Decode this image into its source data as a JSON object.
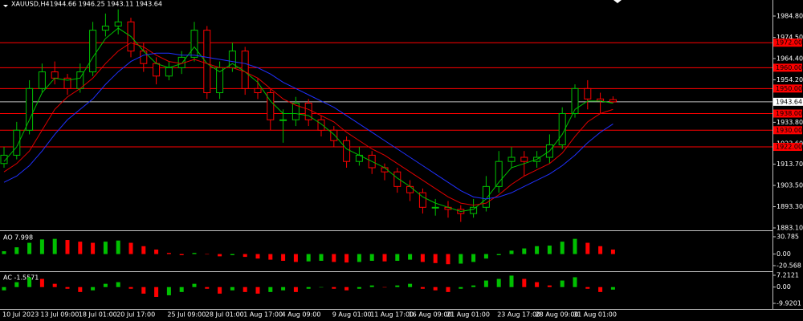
{
  "chart_data": [
    {
      "type": "candlestick",
      "title": "XAUUSD,H4",
      "quote": "1944.66 1946.25 1943.11 1943.64",
      "categories": [
        "10 Jul 2023",
        null,
        null,
        "13 Jul 09:00",
        null,
        null,
        "18 Jul 01:00",
        null,
        null,
        "20 Jul 17:00",
        null,
        null,
        null,
        "25 Jul 09:00",
        null,
        null,
        "28 Jul 01:00",
        null,
        null,
        "1 Aug 17:00",
        null,
        null,
        "4 Aug 09:00",
        null,
        null,
        null,
        "9 Aug 01:00",
        null,
        null,
        "11 Aug 17:00",
        null,
        null,
        "16 Aug 09:00",
        null,
        null,
        "21 Aug 01:00",
        null,
        null,
        null,
        "23 Aug 17:00",
        null,
        null,
        "28 Aug 09:00",
        null,
        null,
        "31 Aug 01:00",
        null,
        null,
        null
      ],
      "open": [
        1914,
        1918,
        1930,
        1950,
        1958,
        1955,
        1950,
        1958,
        1978,
        1980,
        1982,
        1968,
        1962,
        1956,
        1960,
        1965,
        1978,
        1948,
        1960,
        1968,
        1950,
        1948,
        1935,
        1935,
        1943,
        1935,
        1930,
        1925,
        1915,
        1918,
        1912,
        1910,
        1903,
        1900,
        1893,
        1893,
        1892,
        1890,
        1893,
        1903,
        1915,
        1917,
        1915,
        1917,
        1923,
        1938,
        1950,
        1945,
        1944.66
      ],
      "high": [
        1922,
        1934,
        1954,
        1962,
        1963,
        1957,
        1962,
        1982,
        1986,
        1988,
        1984,
        1972,
        1965,
        1963,
        1968,
        1982,
        1980,
        1963,
        1972,
        1970,
        1955,
        1950,
        1940,
        1946,
        1945,
        1937,
        1932,
        1927,
        1922,
        1920,
        1914,
        1912,
        1906,
        1902,
        1897,
        1896,
        1894,
        1897,
        1908,
        1920,
        1922,
        1920,
        1920,
        1928,
        1941,
        1952,
        1954,
        1948,
        1946.25
      ],
      "low": [
        1912,
        1916,
        1928,
        1948,
        1952,
        1947,
        1948,
        1956,
        1975,
        1976,
        1965,
        1958,
        1952,
        1954,
        1957,
        1963,
        1945,
        1945,
        1958,
        1947,
        1945,
        1930,
        1924,
        1932,
        1932,
        1927,
        1922,
        1912,
        1913,
        1909,
        1906,
        1900,
        1896,
        1890,
        1889,
        1888,
        1886,
        1888,
        1891,
        1900,
        1912,
        1908,
        1912,
        1914,
        1921,
        1936,
        1940,
        1938,
        1943.11
      ],
      "close": [
        1918,
        1930,
        1950,
        1958,
        1955,
        1950,
        1958,
        1978,
        1980,
        1982,
        1968,
        1962,
        1956,
        1960,
        1965,
        1978,
        1948,
        1960,
        1968,
        1950,
        1948,
        1935,
        1935,
        1943,
        1935,
        1930,
        1925,
        1915,
        1918,
        1912,
        1910,
        1903,
        1900,
        1893,
        1893,
        1892,
        1890,
        1893,
        1903,
        1915,
        1917,
        1915,
        1917,
        1923,
        1938,
        1950,
        1945,
        1944,
        1943.64
      ],
      "up_color": "#00c000",
      "down_color": "#ff0000",
      "series": [
        {
          "color": "#00c000",
          "values": [
            1915,
            1922,
            1935,
            1948,
            1955,
            1954,
            1955,
            1965,
            1974,
            1979,
            1975,
            1968,
            1962,
            1960,
            1962,
            1970,
            1962,
            1958,
            1962,
            1958,
            1953,
            1944,
            1938,
            1938,
            1937,
            1933,
            1928,
            1921,
            1918,
            1915,
            1912,
            1907,
            1903,
            1898,
            1895,
            1893,
            1891,
            1892,
            1897,
            1905,
            1912,
            1914,
            1916,
            1920,
            1928,
            1940,
            1944,
            1944,
            1943
          ]
        },
        {
          "color": "#e00000",
          "values": [
            1910,
            1914,
            1920,
            1930,
            1940,
            1946,
            1950,
            1955,
            1962,
            1968,
            1972,
            1970,
            1966,
            1963,
            1962,
            1964,
            1962,
            1960,
            1960,
            1958,
            1955,
            1950,
            1945,
            1942,
            1940,
            1937,
            1934,
            1929,
            1925,
            1921,
            1918,
            1914,
            1910,
            1906,
            1902,
            1898,
            1895,
            1894,
            1895,
            1899,
            1904,
            1908,
            1911,
            1914,
            1919,
            1927,
            1934,
            1938,
            1940
          ]
        },
        {
          "color": "#2030ff",
          "values": [
            1905,
            1908,
            1913,
            1920,
            1928,
            1935,
            1940,
            1945,
            1952,
            1958,
            1963,
            1966,
            1967,
            1967,
            1966,
            1966,
            1965,
            1964,
            1963,
            1962,
            1960,
            1957,
            1953,
            1950,
            1947,
            1944,
            1941,
            1937,
            1933,
            1929,
            1925,
            1921,
            1917,
            1913,
            1909,
            1905,
            1901,
            1898,
            1897,
            1898,
            1900,
            1903,
            1906,
            1909,
            1913,
            1918,
            1924,
            1929,
            1933
          ]
        }
      ],
      "ylim": [
        1881.95,
        1992.5
      ],
      "yticks": [
        {
          "value": 1984.8,
          "label": "1984.80"
        },
        {
          "value": 1974.5,
          "label": "1974.50"
        },
        {
          "value": 1964.4,
          "label": "1964.40"
        },
        {
          "value": 1954.2,
          "label": "1954.20"
        },
        {
          "value": 1933.8,
          "label": "1933.80"
        },
        {
          "value": 1923.6,
          "label": "1923.60"
        },
        {
          "value": 1913.7,
          "label": "1913.70"
        },
        {
          "value": 1903.5,
          "label": "1903.50"
        },
        {
          "value": 1893.3,
          "label": "1893.30"
        },
        {
          "value": 1883.1,
          "label": "1883.10"
        }
      ],
      "levels": [
        {
          "value": 1972,
          "label": "1972.00"
        },
        {
          "value": 1960,
          "label": "1960.00"
        },
        {
          "value": 1950,
          "label": "1950.00"
        },
        {
          "value": 1938,
          "label": "1938.00"
        },
        {
          "value": 1930,
          "label": "1930.00"
        },
        {
          "value": 1922,
          "label": "1922.00"
        }
      ],
      "level_color": "#ff0000",
      "current": {
        "value": 1943.64,
        "label": "1943.64"
      }
    },
    {
      "type": "bar",
      "title": "AO 7.998",
      "up_color": "#00c000",
      "down_color": "#ff0000",
      "values": [
        5,
        12,
        20,
        26,
        27,
        25,
        22,
        20,
        22,
        24,
        20,
        14,
        8,
        2,
        -2,
        2,
        0,
        -4,
        -2,
        -5,
        -8,
        -10,
        -12,
        -14,
        -13,
        -12,
        -14,
        -15,
        -14,
        -12,
        -13,
        -12,
        -10,
        -14,
        -16,
        -18,
        -17,
        -14,
        -8,
        -2,
        6,
        10,
        14,
        15,
        22,
        27,
        20,
        14,
        7.998
      ],
      "ylim": [
        -29.1,
        39.3
      ],
      "yticks": [
        30.785,
        {
          "value": 0,
          "label": "0.00"
        },
        -20.568
      ]
    },
    {
      "type": "bar",
      "title": "AC -1.5571",
      "up_color": "#00c000",
      "down_color": "#ff0000",
      "values": [
        -2,
        3,
        6,
        5,
        2,
        -1,
        -3,
        -2,
        2,
        3,
        -1,
        -4,
        -6,
        -5,
        -3,
        2,
        -1,
        -4,
        -2,
        -3,
        -4,
        -3,
        -2,
        -3,
        -1,
        0,
        -1,
        -2,
        -1,
        1,
        0,
        1,
        2,
        -1,
        -2,
        -3,
        -1,
        1,
        4,
        5,
        7,
        5,
        3,
        1,
        4,
        6,
        -1,
        -3,
        -1.5571
      ],
      "ylim": [
        -13.35,
        9.17
      ],
      "yticks": [
        7.2121,
        {
          "value": 0,
          "label": "0.00"
        },
        -9.9201
      ]
    }
  ]
}
